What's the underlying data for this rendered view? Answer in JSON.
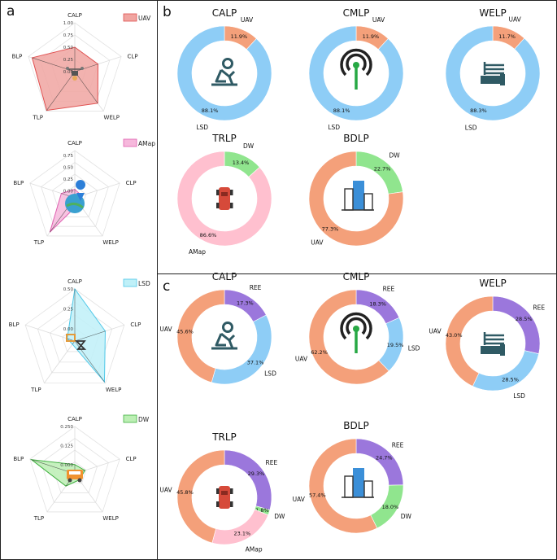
{
  "panel_labels": {
    "a": "a",
    "b": "b",
    "c": "c"
  },
  "colors": {
    "uav": "#f4a07a",
    "lsd": "#8ecdf6",
    "amap": "#ffc0cf",
    "dw": "#90e58e",
    "ree": "#9b77dc",
    "radar_uav_fill": "#f0a5a1",
    "radar_uav_line": "#e05050",
    "radar_amap_fill": "#f6b8dc",
    "radar_amap_line": "#e060b0",
    "radar_lsd_fill": "#bff0f8",
    "radar_lsd_line": "#50c8e8",
    "radar_dw_fill": "#bcefb4",
    "radar_dw_line": "#40b040",
    "icon_dark": "#2f5a64",
    "icon_green": "#27a844",
    "icon_red": "#d64a3a"
  },
  "chart_data": [
    {
      "type": "radar",
      "panel": "a",
      "legend": "UAV",
      "series_key": "uav_radar",
      "axes": [
        "CALP",
        "CLP",
        "WELP",
        "TLP",
        "BLP"
      ],
      "ticks": [
        "0.00",
        "0.25",
        "0.50",
        "0.75",
        "1.00"
      ],
      "rlim": [
        0,
        1.0
      ],
      "values": [
        0.5,
        0.5,
        0.8,
        0.98,
        0.92
      ],
      "icon": "drone-icon"
    },
    {
      "type": "radar",
      "panel": "a",
      "legend": "AMap",
      "series_key": "amap_radar",
      "axes": [
        "CALP",
        "CLP",
        "WELP",
        "TLP",
        "BLP"
      ],
      "ticks": [
        "0.00",
        "0.25",
        "0.50",
        "0.75"
      ],
      "rlim": [
        -0.15,
        0.85
      ],
      "values": [
        0.03,
        0.0,
        0.0,
        0.75,
        0.15
      ],
      "icon": "map-pin-icon"
    },
    {
      "type": "radar",
      "panel": "a",
      "legend": "LSD",
      "series_key": "lsd_radar",
      "axes": [
        "CALP",
        "CLP",
        "WELP",
        "TLP",
        "BLP"
      ],
      "ticks": [
        "0.00",
        "0.25",
        "0.50"
      ],
      "rlim": [
        -0.15,
        0.5
      ],
      "values": [
        0.5,
        0.25,
        0.48,
        -0.1,
        -0.05
      ],
      "icon": "satellite-icon"
    },
    {
      "type": "radar",
      "panel": "a",
      "legend": "DW",
      "series_key": "dw_radar",
      "axes": [
        "CALP",
        "CLP",
        "WELP",
        "TLP",
        "BLP"
      ],
      "ticks": [
        "0.000",
        "0.125",
        "0.250"
      ],
      "rlim": [
        -0.06,
        0.25
      ],
      "values": [
        0.0,
        0.01,
        -0.01,
        0.04,
        0.24
      ],
      "icon": "bus-icon"
    },
    {
      "type": "pie",
      "panel": "b",
      "title": "CALP",
      "icon": "person-icon",
      "slices": [
        {
          "label": "UAV",
          "value": 11.9,
          "pct": "11.9%",
          "color": "uav"
        },
        {
          "label": "LSD",
          "value": 88.1,
          "pct": "88.1%",
          "color": "lsd"
        }
      ]
    },
    {
      "type": "pie",
      "panel": "b",
      "title": "CMLP",
      "icon": "signal-tower-icon",
      "slices": [
        {
          "label": "UAV",
          "value": 11.9,
          "pct": "11.9%",
          "color": "uav"
        },
        {
          "label": "LSD",
          "value": 88.1,
          "pct": "88.1%",
          "color": "lsd"
        }
      ]
    },
    {
      "type": "pie",
      "panel": "b",
      "title": "WELP",
      "icon": "water-electric-icon",
      "slices": [
        {
          "label": "UAV",
          "value": 11.7,
          "pct": "11.7%",
          "color": "uav"
        },
        {
          "label": "LSD",
          "value": 88.3,
          "pct": "88.3%",
          "color": "lsd"
        }
      ]
    },
    {
      "type": "pie",
      "panel": "b",
      "title": "TRLP",
      "icon": "vehicle-icon",
      "slices": [
        {
          "label": "DW",
          "value": 13.4,
          "pct": "13.4%",
          "color": "dw"
        },
        {
          "label": "AMap",
          "value": 86.6,
          "pct": "86.6%",
          "color": "amap"
        }
      ]
    },
    {
      "type": "pie",
      "panel": "b",
      "title": "BDLP",
      "icon": "building-icon",
      "slices": [
        {
          "label": "DW",
          "value": 22.7,
          "pct": "22.7%",
          "color": "dw"
        },
        {
          "label": "UAV",
          "value": 77.3,
          "pct": "77.3%",
          "color": "uav"
        }
      ]
    },
    {
      "type": "pie",
      "panel": "c",
      "title": "CALP",
      "icon": "person-icon",
      "slices": [
        {
          "label": "REE",
          "value": 17.3,
          "pct": "17.3%",
          "color": "ree"
        },
        {
          "label": "LSD",
          "value": 37.1,
          "pct": "37.1%",
          "color": "lsd"
        },
        {
          "label": "UAV",
          "value": 45.6,
          "pct": "45.6%",
          "color": "uav"
        }
      ]
    },
    {
      "type": "pie",
      "panel": "c",
      "title": "CMLP",
      "icon": "signal-tower-icon",
      "slices": [
        {
          "label": "REE",
          "value": 18.3,
          "pct": "18.3%",
          "color": "ree"
        },
        {
          "label": "LSD",
          "value": 19.5,
          "pct": "19.5%",
          "color": "lsd"
        },
        {
          "label": "UAV",
          "value": 62.2,
          "pct": "62.2%",
          "color": "uav"
        }
      ]
    },
    {
      "type": "pie",
      "panel": "c",
      "title": "WELP",
      "icon": "water-electric-icon",
      "slices": [
        {
          "label": "REE",
          "value": 28.5,
          "pct": "28.5%",
          "color": "ree"
        },
        {
          "label": "LSD",
          "value": 28.5,
          "pct": "28.5%",
          "color": "lsd"
        },
        {
          "label": "UAV",
          "value": 43.0,
          "pct": "43.0%",
          "color": "uav"
        }
      ]
    },
    {
      "type": "pie",
      "panel": "c",
      "title": "TRLP",
      "icon": "vehicle-icon",
      "slices": [
        {
          "label": "REE",
          "value": 29.3,
          "pct": "29.3%",
          "color": "ree"
        },
        {
          "label": "DW",
          "value": 1.8,
          "pct": "1.8%",
          "color": "dw"
        },
        {
          "label": "AMap",
          "value": 23.1,
          "pct": "23.1%",
          "color": "amap"
        },
        {
          "label": "UAV",
          "value": 45.8,
          "pct": "45.8%",
          "color": "uav"
        }
      ]
    },
    {
      "type": "pie",
      "panel": "c",
      "title": "BDLP",
      "icon": "building-icon",
      "slices": [
        {
          "label": "REE",
          "value": 24.7,
          "pct": "24.7%",
          "color": "ree"
        },
        {
          "label": "DW",
          "value": 18.0,
          "pct": "18.0%",
          "color": "dw"
        },
        {
          "label": "UAV",
          "value": 57.4,
          "pct": "57.4%",
          "color": "uav"
        }
      ]
    }
  ]
}
